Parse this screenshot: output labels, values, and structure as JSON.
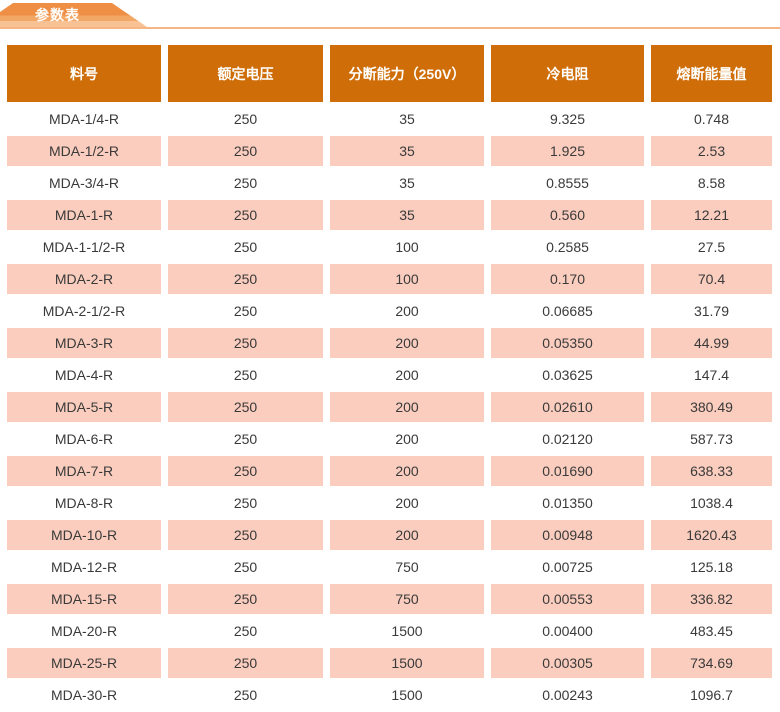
{
  "section": {
    "tab_label": "参数表"
  },
  "colors": {
    "header_bg": "#cf6e08",
    "row_alt_bg": "#facdbe",
    "tab_gradient_top": "#ee8f45",
    "tab_gradient_bottom": "#f8c294",
    "tab_underline": "#f5b585",
    "cell_text": "#3a3a3a",
    "header_text": "#ffffff"
  },
  "table": {
    "columns": [
      "料号",
      "额定电压",
      "分断能力（250V）",
      "冷电阻",
      "熔断能量值"
    ],
    "rows": [
      [
        "MDA-1/4-R",
        "250",
        "35",
        "9.325",
        "0.748"
      ],
      [
        "MDA-1/2-R",
        "250",
        "35",
        "1.925",
        "2.53"
      ],
      [
        "MDA-3/4-R",
        "250",
        "35",
        "0.8555",
        "8.58"
      ],
      [
        "MDA-1-R",
        "250",
        "35",
        "0.560",
        "12.21"
      ],
      [
        "MDA-1-1/2-R",
        "250",
        "100",
        "0.2585",
        "27.5"
      ],
      [
        "MDA-2-R",
        "250",
        "100",
        "0.170",
        "70.4"
      ],
      [
        "MDA-2-1/2-R",
        "250",
        "200",
        "0.06685",
        "31.79"
      ],
      [
        "MDA-3-R",
        "250",
        "200",
        "0.05350",
        "44.99"
      ],
      [
        "MDA-4-R",
        "250",
        "200",
        "0.03625",
        "147.4"
      ],
      [
        "MDA-5-R",
        "250",
        "200",
        "0.02610",
        "380.49"
      ],
      [
        "MDA-6-R",
        "250",
        "200",
        "0.02120",
        "587.73"
      ],
      [
        "MDA-7-R",
        "250",
        "200",
        "0.01690",
        "638.33"
      ],
      [
        "MDA-8-R",
        "250",
        "200",
        "0.01350",
        "1038.4"
      ],
      [
        "MDA-10-R",
        "250",
        "200",
        "0.00948",
        "1620.43"
      ],
      [
        "MDA-12-R",
        "250",
        "750",
        "0.00725",
        "125.18"
      ],
      [
        "MDA-15-R",
        "250",
        "750",
        "0.00553",
        "336.82"
      ],
      [
        "MDA-20-R",
        "250",
        "1500",
        "0.00400",
        "483.45"
      ],
      [
        "MDA-25-R",
        "250",
        "1500",
        "0.00305",
        "734.69"
      ],
      [
        "MDA-30-R",
        "250",
        "1500",
        "0.00243",
        "1096.7"
      ]
    ]
  }
}
